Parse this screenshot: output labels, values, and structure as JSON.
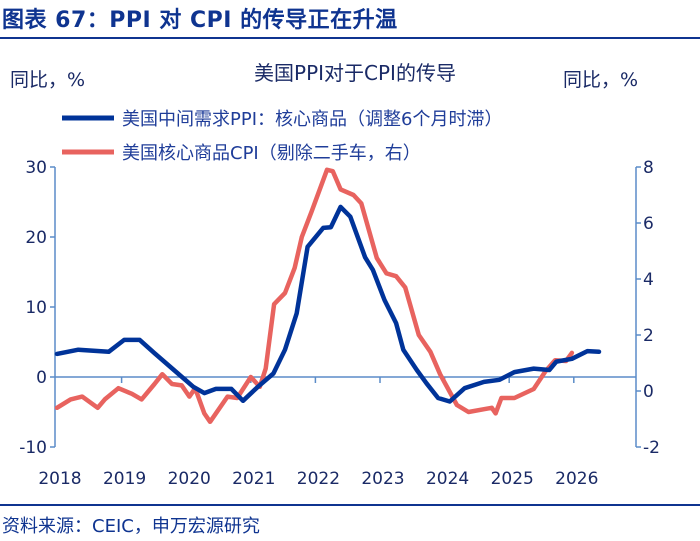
{
  "header": {
    "title": "图表 67：PPI 对 CPI 的传导正在升温"
  },
  "footer": {
    "source": "资料来源：CEIC，申万宏源研究"
  },
  "colors": {
    "header": "#0f3490",
    "series_ppi": "#003399",
    "series_cpi": "#e8635f",
    "axis": "#5b8cc8",
    "text": "#1a2a66"
  },
  "chart_data": {
    "type": "line",
    "title": "美国PPI对于CPI的传导",
    "ylabel_left": "同比，%",
    "ylabel_right": "同比，%",
    "x_ticks": [
      "2018",
      "2019",
      "2020",
      "2021",
      "2022",
      "2023",
      "2024",
      "2025",
      "2026"
    ],
    "ylim_left": [
      -10,
      30
    ],
    "yticks_left": [
      "30",
      "20",
      "10",
      "0",
      "-10"
    ],
    "ylim_right": [
      -2,
      8
    ],
    "yticks_right": [
      "8",
      "6",
      "4",
      "2",
      "0",
      "-2"
    ],
    "legend_placement": "top-left",
    "grid": false,
    "series": [
      {
        "name": "美国中间需求PPI：核心商品（调整6个月时滞）",
        "axis": "left",
        "x": [
          2018.0,
          2018.33,
          2018.8,
          2019.04,
          2019.28,
          2019.51,
          2019.81,
          2020.11,
          2020.28,
          2020.46,
          2020.7,
          2020.88,
          2021.11,
          2021.35,
          2021.53,
          2021.71,
          2021.88,
          2022.12,
          2022.24,
          2022.39,
          2022.54,
          2022.77,
          2022.89,
          2023.07,
          2023.25,
          2023.36,
          2023.57,
          2023.72,
          2023.9,
          2024.08,
          2024.31,
          2024.61,
          2024.85,
          2025.08,
          2025.38,
          2025.62,
          2025.73,
          2025.97,
          2026.21,
          2026.39
        ],
        "y": [
          3.3,
          3.9,
          3.6,
          5.3,
          5.3,
          3.4,
          1.0,
          -1.4,
          -2.3,
          -1.7,
          -1.7,
          -3.4,
          -1.4,
          0.5,
          3.9,
          9.1,
          18.6,
          21.3,
          21.4,
          24.3,
          22.9,
          17.1,
          15.3,
          11.0,
          7.7,
          3.9,
          1.0,
          -0.9,
          -3.0,
          -3.5,
          -1.6,
          -0.7,
          -0.4,
          0.7,
          1.2,
          1.0,
          2.2,
          2.6,
          3.7,
          3.6
        ]
      },
      {
        "name": "美国核心商品CPI（剔除二手车，右）",
        "axis": "right",
        "x": [
          2018.0,
          2018.21,
          2018.39,
          2018.63,
          2018.74,
          2018.95,
          2019.16,
          2019.31,
          2019.51,
          2019.63,
          2019.78,
          2019.93,
          2020.05,
          2020.14,
          2020.28,
          2020.37,
          2020.64,
          2020.79,
          2021.0,
          2021.14,
          2021.23,
          2021.36,
          2021.53,
          2021.68,
          2021.79,
          2021.94,
          2022.18,
          2022.27,
          2022.39,
          2022.59,
          2022.71,
          2022.95,
          2023.1,
          2023.25,
          2023.39,
          2023.6,
          2023.78,
          2023.93,
          2024.19,
          2024.37,
          2024.61,
          2024.73,
          2024.79,
          2024.88,
          2025.08,
          2025.38,
          2025.56,
          2025.71,
          2025.88,
          2025.97
        ],
        "y": [
          -0.6,
          -0.3,
          -0.2,
          -0.6,
          -0.3,
          0.1,
          -0.1,
          -0.3,
          0.25,
          0.6,
          0.25,
          0.2,
          -0.2,
          0.1,
          -0.8,
          -1.1,
          -0.2,
          -0.25,
          0.5,
          0.15,
          0.8,
          3.1,
          3.5,
          4.4,
          5.5,
          6.4,
          7.9,
          7.85,
          7.2,
          7.0,
          6.7,
          4.75,
          4.2,
          4.1,
          3.7,
          2.0,
          1.4,
          0.6,
          -0.5,
          -0.75,
          -0.65,
          -0.6,
          -0.8,
          -0.25,
          -0.25,
          0.07,
          0.7,
          1.1,
          1.07,
          1.36
        ]
      }
    ]
  }
}
